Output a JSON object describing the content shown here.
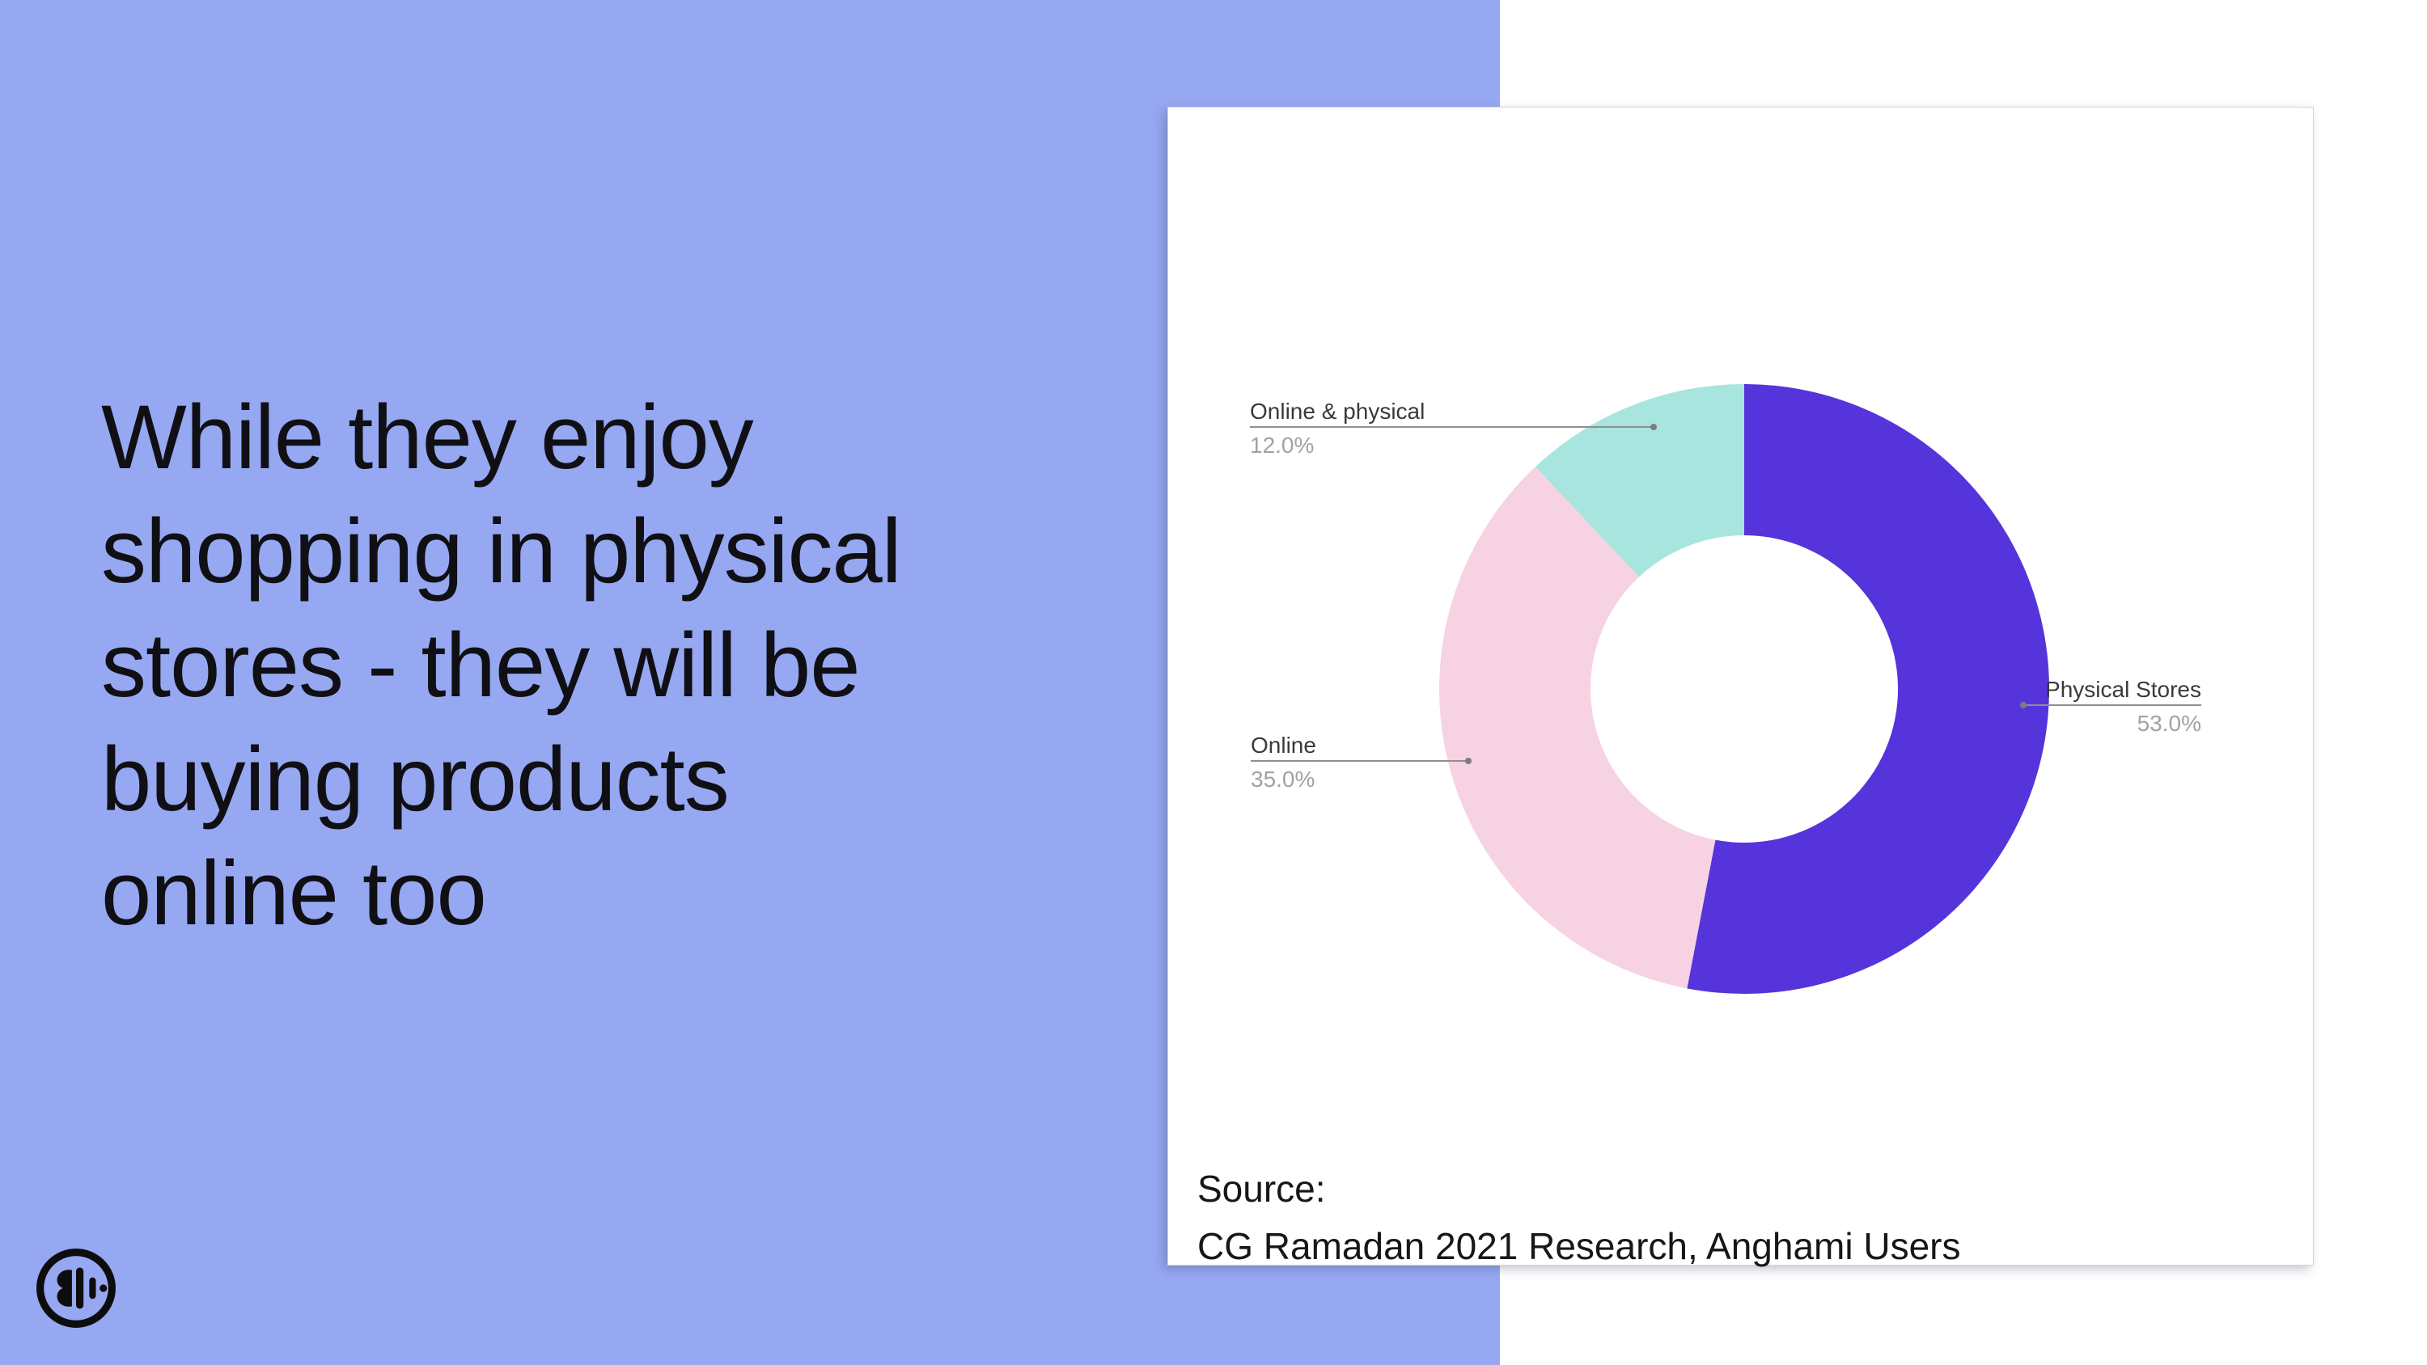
{
  "slide": {
    "title": "While they enjoy\nshopping in physical\nstores - they will be\nbuying products\nonline too"
  },
  "icons": {
    "logo": "anghami-sound-wave-logo"
  },
  "colors": {
    "background_accent": "#97A8F2",
    "card_background": "#FFFFFF",
    "title_text": "#101014",
    "callout_label": "#3A3A3A",
    "callout_value": "#A2A2A2",
    "leader_line": "#8F8F8F",
    "logo": "#0D0D0D"
  },
  "chart_data": {
    "type": "pie",
    "donut": true,
    "title": "",
    "legend_position": "none",
    "labels_style": "callouts-with-percent",
    "start_angle_deg": 0,
    "direction": "clockwise",
    "categories": [
      "Physical Stores",
      "Online",
      "Online & physical"
    ],
    "values": [
      53.0,
      35.0,
      12.0
    ],
    "slices": [
      {
        "label": "Physical Stores",
        "value": 53.0,
        "pct_label": "53.0%",
        "color": "#5634DB"
      },
      {
        "label": "Online",
        "value": 35.0,
        "pct_label": "35.0%",
        "color": "#F6D2E3"
      },
      {
        "label": "Online & physical",
        "value": 12.0,
        "pct_label": "12.0%",
        "color": "#A7E5DE"
      }
    ]
  },
  "card": {
    "source_label": "Source:",
    "source_text": "CG Ramadan 2021 Research, Anghami Users"
  }
}
